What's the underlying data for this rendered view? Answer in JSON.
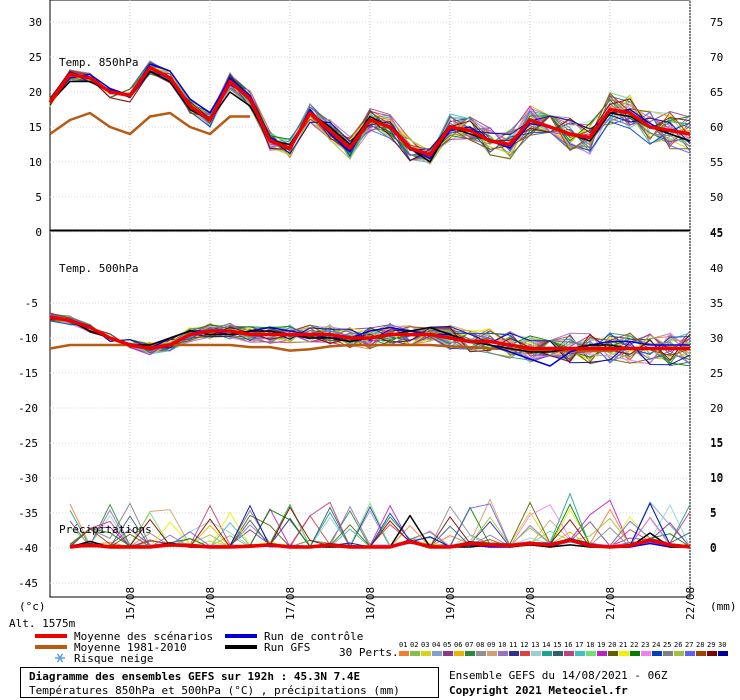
{
  "chart_data": {
    "type": "line",
    "x_dates": [
      "15/08",
      "16/08",
      "17/08",
      "18/08",
      "19/08",
      "20/08",
      "21/08",
      "22/08"
    ],
    "panels": [
      {
        "label": "Temp. 850hPa",
        "left_ticks": [
          30,
          25,
          20,
          15,
          10,
          5,
          0
        ],
        "right_ticks": [
          75,
          70,
          65,
          60,
          55,
          50,
          45
        ],
        "x": [
          0,
          0.25,
          0.5,
          0.75,
          1,
          1.25,
          1.5,
          1.75,
          2,
          2.25,
          2.5,
          2.75,
          3,
          3.25,
          3.5,
          3.75,
          4,
          4.25,
          4.5,
          4.75,
          5,
          5.25,
          5.5,
          5.75,
          6,
          6.25,
          6.5,
          6.75,
          7,
          7.25,
          7.5,
          7.75,
          8
        ],
        "series": [
          {
            "name": "Moyenne des scénarios",
            "color": "#ee0000",
            "width": 3.5,
            "values": [
              18.5,
              22.5,
              22,
              20,
              19.5,
              23.5,
              22,
              18,
              16,
              21.5,
              19,
              13,
              12,
              17,
              14.5,
              12,
              16,
              15,
              12,
              11,
              15,
              14.5,
              13,
              12.5,
              16,
              15,
              14,
              13.5,
              17.5,
              17,
              15,
              14.5,
              14
            ]
          },
          {
            "name": "Moyenne 1981-2010",
            "color": "#b85a10",
            "width": 2.5,
            "values": [
              14,
              16,
              17,
              15,
              14,
              16.5,
              17,
              15,
              14,
              16.5,
              16.5,
              null,
              null,
              null,
              null,
              null,
              null,
              null,
              null,
              null,
              null,
              null,
              null,
              null,
              null,
              null,
              null,
              null,
              null,
              null,
              null,
              null,
              null
            ]
          },
          {
            "name": "Run de contrôle",
            "color": "#0000dd",
            "width": 1.5,
            "values": [
              18.5,
              22,
              22.5,
              20.5,
              19.5,
              24,
              23,
              19,
              17,
              22,
              19.5,
              13.5,
              12,
              17.5,
              14,
              11.5,
              16,
              15,
              12,
              10.5,
              14.5,
              15,
              13,
              12,
              15.5,
              15,
              14,
              13,
              17,
              17.5,
              15.5,
              14,
              13
            ]
          },
          {
            "name": "Run GFS",
            "color": "#000000",
            "width": 1.5,
            "values": [
              18.5,
              21.5,
              21.5,
              20,
              19.5,
              23,
              21.5,
              17.5,
              16,
              20,
              18,
              13,
              12.5,
              17,
              15,
              12.5,
              16.5,
              15,
              12,
              10,
              15,
              14,
              13,
              12.5,
              16,
              15,
              14,
              13,
              17,
              16.5,
              15,
              14,
              13
            ]
          }
        ]
      },
      {
        "label": "Temp. 500hPa",
        "left_ticks": [
          0,
          -5,
          -10,
          -15,
          -20,
          -25,
          -30,
          -35,
          -40,
          -45
        ],
        "right_ticks": [
          45,
          40,
          35,
          30,
          25,
          20,
          15,
          10,
          5,
          0
        ],
        "x": [
          0,
          0.25,
          0.5,
          0.75,
          1,
          1.25,
          1.5,
          1.75,
          2,
          2.25,
          2.5,
          2.75,
          3,
          3.25,
          3.5,
          3.75,
          4,
          4.25,
          4.5,
          4.75,
          5,
          5.25,
          5.5,
          5.75,
          6,
          6.25,
          6.5,
          6.75,
          7,
          7.25,
          7.5,
          7.75,
          8
        ],
        "series": [
          {
            "name": "Moyenne des scénarios",
            "color": "#ee0000",
            "width": 3.5,
            "values": [
              -7,
              -7.5,
              -8.5,
              -10,
              -11,
              -11.5,
              -11,
              -9.5,
              -9,
              -9,
              -9.5,
              -9.5,
              -9.5,
              -9.5,
              -9.5,
              -10,
              -10,
              -9.5,
              -9.5,
              -9.5,
              -10,
              -10.5,
              -10.5,
              -11,
              -11.5,
              -11.5,
              -11.5,
              -11.5,
              -11.5,
              -11.5,
              -11.5,
              -11.5,
              -11.5
            ]
          },
          {
            "name": "Moyenne 1981-2010",
            "color": "#b85a10",
            "width": 2.5,
            "values": [
              -11.5,
              -11,
              -11,
              -11,
              -11,
              -11,
              -11,
              -11,
              -11,
              -11,
              -11.3,
              -11.3,
              -11.8,
              -11.6,
              -11.2,
              -11,
              -11,
              -11,
              -11,
              -11,
              -11.2,
              -11.3,
              -11.5,
              -11.6,
              -11.8,
              -11.8,
              -11.9,
              -11.9,
              -11.8,
              -11.5,
              -11.5,
              -11.5,
              -11.5
            ]
          },
          {
            "name": "Run de contrôle",
            "color": "#0000dd",
            "width": 1.5,
            "values": [
              -7,
              -7.5,
              -9,
              -10,
              -11,
              -11.5,
              -10,
              -9,
              -9,
              -9.5,
              -9,
              -8.5,
              -9,
              -9.5,
              -10,
              -10,
              -9,
              -8.5,
              -9,
              -9.5,
              -9.5,
              -10.5,
              -11,
              -12,
              -13,
              -14,
              -12,
              -11,
              -10.5,
              -10.5,
              -11,
              -11,
              -11
            ]
          },
          {
            "name": "Run GFS",
            "color": "#000000",
            "width": 1.5,
            "values": [
              -7,
              -7.5,
              -9,
              -10,
              -11,
              -11,
              -10,
              -9,
              -9.5,
              -9.5,
              -9,
              -9,
              -9.5,
              -10,
              -10,
              -10.5,
              -10,
              -9.5,
              -9,
              -8.5,
              -9.5,
              -10.5,
              -11,
              -11.5,
              -12,
              -12,
              -11.5,
              -11,
              -11,
              -11.5,
              -11.5,
              -11.5,
              -11.5
            ]
          }
        ]
      },
      {
        "label": "Précipitations",
        "right_ticks": [
          15,
          10,
          5,
          0
        ],
        "x": [
          0,
          0.25,
          0.5,
          0.75,
          1,
          1.25,
          1.5,
          1.75,
          2,
          2.25,
          2.5,
          2.75,
          3,
          3.25,
          3.5,
          3.75,
          4,
          4.25,
          4.5,
          4.75,
          5,
          5.25,
          5.5,
          5.75,
          6,
          6.25,
          6.5,
          6.75,
          7,
          7.25,
          7.5,
          7.75,
          8
        ],
        "series": [
          {
            "name": "Moyenne des scénarios",
            "color": "#ee0000",
            "width": 3.5,
            "values": [
              null,
              0,
              0.3,
              0,
              0,
              0,
              0.3,
              0.2,
              0,
              0,
              0.1,
              0.3,
              0,
              0,
              0.3,
              0,
              0,
              0,
              0.8,
              0,
              0,
              0.5,
              0.3,
              0.2,
              0.5,
              0.3,
              1,
              0.2,
              0,
              0.2,
              1,
              0.3,
              0
            ]
          },
          {
            "name": "Run de contrôle",
            "color": "#0000dd",
            "width": 1.5,
            "values": [
              null,
              0,
              0.5,
              0,
              0,
              0,
              0.5,
              0,
              0,
              0,
              0.2,
              0.3,
              0,
              0,
              0.5,
              0,
              0,
              0,
              1,
              0,
              0,
              0.3,
              0,
              0,
              0.5,
              0,
              1,
              0,
              0,
              0,
              0.5,
              0,
              0
            ]
          },
          {
            "name": "Run GFS",
            "color": "#000000",
            "width": 1.5,
            "values": [
              null,
              0,
              0.8,
              0,
              0,
              0,
              0.6,
              0,
              0,
              0,
              0,
              0.5,
              0,
              0,
              0,
              0,
              0,
              0,
              4.5,
              0,
              0,
              0,
              0.3,
              0,
              0.3,
              0,
              0.3,
              0,
              0,
              0,
              2,
              0,
              0
            ]
          }
        ]
      }
    ],
    "ensemble_colors": [
      "#f47c30",
      "#84c04c",
      "#d4d41a",
      "#7f9fd0",
      "#8a3a8a",
      "#f0b000",
      "#2a8a3a",
      "#909090",
      "#d0a070",
      "#9a70c0",
      "#303090",
      "#e04040",
      "#9ad0d0",
      "#20a090",
      "#306070",
      "#c04080",
      "#40c0c0",
      "#70e070",
      "#c020c0",
      "#606000",
      "#f0f000",
      "#008000",
      "#f080f0",
      "#0040c0",
      "#808080",
      "#a0c040",
      "#6060f0",
      "#a04000",
      "#800000",
      "#0000a0"
    ],
    "xlabel": "",
    "ylabel": ""
  },
  "axis": {
    "left_unit": "(°c)",
    "right_unit": "(mm)",
    "altitude": "Alt. 1575m"
  },
  "legend": {
    "scenario_mean": "Moyenne des scénarios",
    "climatology_mean": "Moyenne 1981-2010",
    "snow_risk": "Risque neige",
    "control_run": "Run de contrôle",
    "gfs_run": "Run GFS",
    "perts": "30 Perts.",
    "pert_ids": [
      "01",
      "02",
      "03",
      "04",
      "05",
      "06",
      "07",
      "08",
      "09",
      "10",
      "11",
      "12",
      "13",
      "14",
      "15",
      "16",
      "17",
      "18",
      "19",
      "20",
      "21",
      "22",
      "23",
      "24",
      "25",
      "26",
      "27",
      "28",
      "29",
      "30"
    ],
    "colors": {
      "scenario_mean": "#ee0000",
      "climatology_mean": "#b85a10",
      "control_run": "#0000dd",
      "gfs_run": "#000000",
      "snow": "#5aa0e0"
    }
  },
  "footer": {
    "title": "Diagramme des ensembles GEFS sur 192h : 45.3N 7.4E",
    "subtitle": "Températures 850hPa et 500hPa (°C) , précipitations (mm)",
    "run_info": "Ensemble GEFS du 14/08/2021 - 06Z",
    "copyright": "Copyright 2021 Meteociel.fr"
  }
}
